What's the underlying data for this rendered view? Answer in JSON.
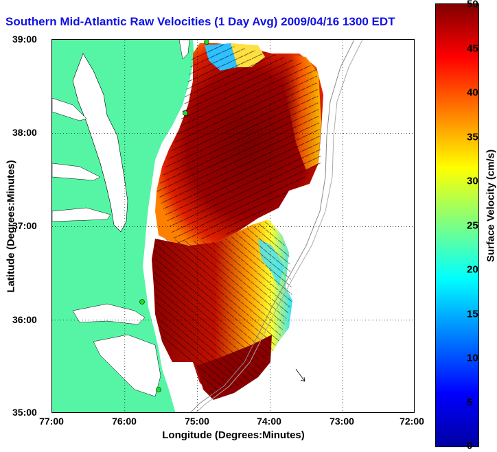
{
  "title": "Southern Mid-Atlantic Raw Velocities (1 Day Avg) 2009/04/16 1300 EDT",
  "map": {
    "x_ticks": [
      "77:00",
      "76:00",
      "75:00",
      "74:00",
      "73:00",
      "72:00"
    ],
    "y_ticks": [
      "39:00",
      "38:00",
      "37:00",
      "36:00",
      "35:00"
    ],
    "xlabel": "Longitude (Degrees:Minutes)",
    "ylabel": "Latitude (Degrees:Minutes)",
    "lon_range": [
      -77,
      -72
    ],
    "lat_range": [
      35,
      39
    ],
    "land_color": "#55f5a5",
    "grid": "dotted",
    "radar_sites": [
      {
        "lon": -75.08,
        "lat": 38.98
      },
      {
        "lon": -75.18,
        "lat": 38.25
      },
      {
        "lon": -75.77,
        "lat": 36.18
      },
      {
        "lon": -75.5,
        "lat": 35.25
      }
    ]
  },
  "colorbar": {
    "label": "Surface Velocity (cm/s)",
    "ticks": [
      "50",
      "45",
      "40",
      "35",
      "30",
      "25",
      "20",
      "15",
      "10",
      "5",
      "0"
    ],
    "range": [
      0,
      50
    ],
    "colormap": "jet"
  }
}
